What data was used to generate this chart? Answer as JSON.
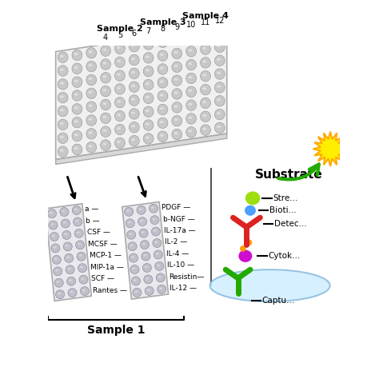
{
  "background_color": "#ffffff",
  "sample_labels_top": [
    "Sample 2",
    "Sample 3",
    "Sample 4"
  ],
  "sample_col_nums": [
    "4",
    "5",
    "6",
    "7",
    "8",
    "9",
    "10",
    "11",
    "12"
  ],
  "sample1_label": "Sample 1",
  "left_labels": [
    "a —",
    "b —",
    "CSF —",
    "MCSF —",
    "MCP-1 —",
    "MIP-1a —",
    "SCF —",
    "Rantes —"
  ],
  "right_labels_col2": [
    "PDGF —",
    "b-NGF —",
    "IL-17a —",
    "IL-2 —",
    "IL-4 —",
    "IL-10 —",
    "Resistin—",
    "IL-12 —"
  ],
  "substrate_label": "Substrate",
  "legend_labels": [
    "Stre",
    "Bioti",
    "Detec",
    "Cytok",
    "Captu"
  ],
  "arrow_color": "#22aa00",
  "y_shape_color": "#22aa00",
  "antibody_color": "#dd2222",
  "cytokine_color": "#cc00cc",
  "biotin_color": "#4499ff",
  "strep_color": "#99dd00",
  "orange_color": "#ff9900",
  "plate_top_color": "#f0f0f0",
  "plate_side_color": "#d8d8d8",
  "well_color": "#c8c8c8",
  "subplate_color": "#e8e8ee",
  "subwell_color": "#c0c0cc"
}
